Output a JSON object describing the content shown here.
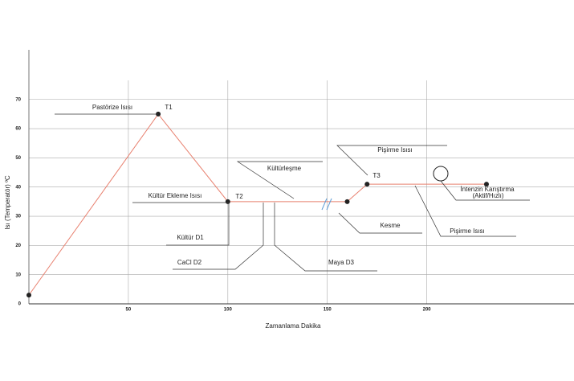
{
  "chart_data": {
    "type": "line",
    "x_label": "Zamanlama Dakika",
    "y_label": "Isı (Temperatör) ºC",
    "x": [
      0,
      65,
      100,
      160,
      170,
      230
    ],
    "values": [
      3,
      65,
      35,
      35,
      41,
      41
    ],
    "color": "#e8806f",
    "marker_color": "#222222",
    "xlim": [
      0,
      274
    ],
    "xticks": [
      50,
      100,
      150,
      200
    ],
    "ylim": [
      0,
      87
    ],
    "yticks": [
      0,
      10,
      20,
      30,
      40,
      50,
      60,
      70
    ],
    "grid": true,
    "annotations": [
      "Pastörize Isısı",
      "T1",
      "T2",
      "T3",
      "Kültür Ekleme Isısı",
      "Kültürleşme",
      "Pişirme Isısı",
      "Kesme",
      "Kültür D1",
      "CaCl D2",
      "Maya D3",
      "İntenzin Karıştırma",
      "(Aktif/Hızlı)",
      "Pişirme Isısı"
    ]
  }
}
